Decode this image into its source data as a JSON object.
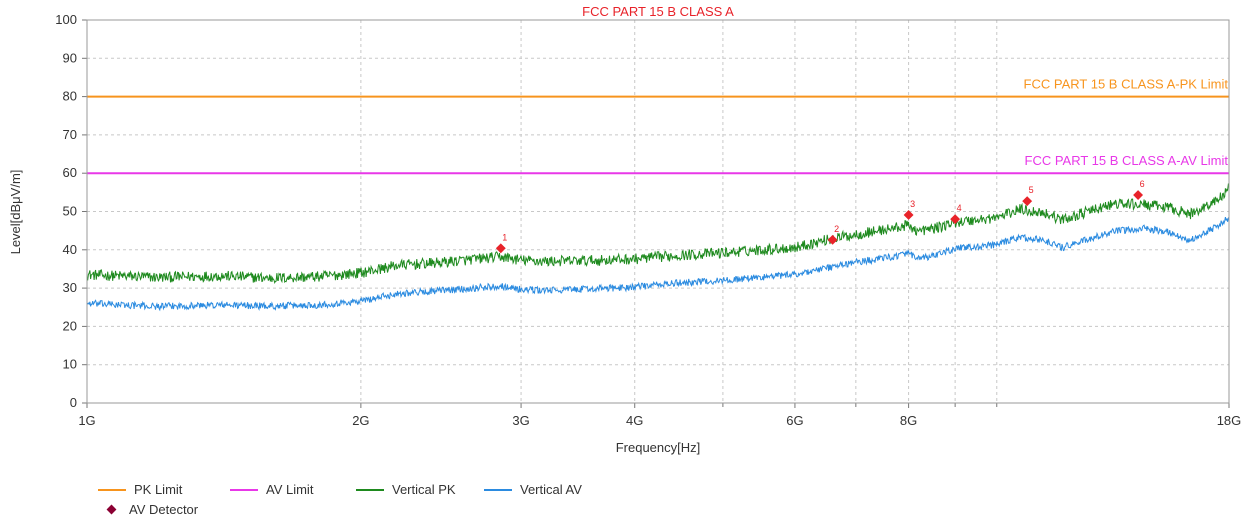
{
  "chart_data": {
    "type": "line",
    "title": "FCC PART 15 B CLASS A",
    "xlabel": "Frequency[Hz]",
    "ylabel": "Level[dBμV/m]",
    "x_scale": "log",
    "xlim_ghz": [
      1,
      18
    ],
    "ylim": [
      0,
      100
    ],
    "y_ticks": [
      0,
      10,
      20,
      30,
      40,
      50,
      60,
      70,
      80,
      90,
      100
    ],
    "x_ticks": [
      {
        "ghz": 1,
        "label": "1G"
      },
      {
        "ghz": 2,
        "label": "2G"
      },
      {
        "ghz": 3,
        "label": "3G"
      },
      {
        "ghz": 4,
        "label": "4G"
      },
      {
        "ghz": 6,
        "label": "6G"
      },
      {
        "ghz": 8,
        "label": "8G"
      },
      {
        "ghz": 18,
        "label": "18G"
      }
    ],
    "x_minor_grid_ghz": [
      5,
      7,
      9,
      10
    ],
    "grid": true,
    "limits": [
      {
        "name": "PK Limit",
        "value": 80,
        "color": "#f7941d",
        "label": "FCC PART 15 B CLASS A-PK Limit"
      },
      {
        "name": "AV Limit",
        "value": 60,
        "color": "#e838e8",
        "label": "FCC PART 15 B CLASS A-AV Limit"
      }
    ],
    "series": [
      {
        "name": "Vertical PK",
        "color": "#1e8a1e",
        "points": [
          [
            1.0,
            33.5
          ],
          [
            1.2,
            32.8
          ],
          [
            1.4,
            33.2
          ],
          [
            1.6,
            32.6
          ],
          [
            1.8,
            33.0
          ],
          [
            2.0,
            34.0
          ],
          [
            2.2,
            36.0
          ],
          [
            2.4,
            36.5
          ],
          [
            2.6,
            37.3
          ],
          [
            2.85,
            38.2
          ],
          [
            3.0,
            37.3
          ],
          [
            3.2,
            37.0
          ],
          [
            3.6,
            37.2
          ],
          [
            4.0,
            37.6
          ],
          [
            4.5,
            38.6
          ],
          [
            5.0,
            39.2
          ],
          [
            5.5,
            40.0
          ],
          [
            6.0,
            40.6
          ],
          [
            6.5,
            42.6
          ],
          [
            7.0,
            44.0
          ],
          [
            7.5,
            45.2
          ],
          [
            8.0,
            46.4
          ],
          [
            8.2,
            44.8
          ],
          [
            8.6,
            45.8
          ],
          [
            9.0,
            47.2
          ],
          [
            9.5,
            47.8
          ],
          [
            10.0,
            48.4
          ],
          [
            10.6,
            50.6
          ],
          [
            11.3,
            49.6
          ],
          [
            11.8,
            47.8
          ],
          [
            12.6,
            50.0
          ],
          [
            13.5,
            52.0
          ],
          [
            14.5,
            51.8
          ],
          [
            15.5,
            51.0
          ],
          [
            16.3,
            49.2
          ],
          [
            17.0,
            51.5
          ],
          [
            17.6,
            53.5
          ],
          [
            18.0,
            56.0
          ]
        ]
      },
      {
        "name": "Vertical AV",
        "color": "#2b8be0",
        "points": [
          [
            1.0,
            26.0
          ],
          [
            1.2,
            25.2
          ],
          [
            1.4,
            25.6
          ],
          [
            1.6,
            25.3
          ],
          [
            1.8,
            25.6
          ],
          [
            2.0,
            26.6
          ],
          [
            2.2,
            28.6
          ],
          [
            2.4,
            29.2
          ],
          [
            2.6,
            29.8
          ],
          [
            2.85,
            30.6
          ],
          [
            3.0,
            29.6
          ],
          [
            3.2,
            29.4
          ],
          [
            3.6,
            29.8
          ],
          [
            4.0,
            30.3
          ],
          [
            4.5,
            31.4
          ],
          [
            5.0,
            32.0
          ],
          [
            5.5,
            32.8
          ],
          [
            6.0,
            33.6
          ],
          [
            6.5,
            35.2
          ],
          [
            7.0,
            36.8
          ],
          [
            7.5,
            37.8
          ],
          [
            8.0,
            39.0
          ],
          [
            8.2,
            37.6
          ],
          [
            8.6,
            38.6
          ],
          [
            9.0,
            40.4
          ],
          [
            9.5,
            40.8
          ],
          [
            10.0,
            41.3
          ],
          [
            10.6,
            43.3
          ],
          [
            11.3,
            42.4
          ],
          [
            11.8,
            40.6
          ],
          [
            12.6,
            42.7
          ],
          [
            13.5,
            44.8
          ],
          [
            14.5,
            45.6
          ],
          [
            15.5,
            44.6
          ],
          [
            16.3,
            42.4
          ],
          [
            17.0,
            44.6
          ],
          [
            17.6,
            46.6
          ],
          [
            18.0,
            48.4
          ]
        ]
      }
    ],
    "markers": {
      "name": "AV Detector",
      "color": "#e8232a",
      "points": [
        {
          "n": "1",
          "ghz": 2.85,
          "value": 40.4
        },
        {
          "n": "2",
          "ghz": 6.6,
          "value": 42.6
        },
        {
          "n": "3",
          "ghz": 8.0,
          "value": 49.1
        },
        {
          "n": "4",
          "ghz": 9.0,
          "value": 48.0
        },
        {
          "n": "5",
          "ghz": 10.8,
          "value": 52.7
        },
        {
          "n": "6",
          "ghz": 14.3,
          "value": 54.3
        }
      ]
    },
    "legend": {
      "placement": "bottom-left",
      "items": [
        {
          "label": "PK Limit",
          "color": "#f7941d",
          "kind": "line"
        },
        {
          "label": "AV Limit",
          "color": "#e838e8",
          "kind": "line"
        },
        {
          "label": "Vertical PK",
          "color": "#1e8a1e",
          "kind": "line"
        },
        {
          "label": "Vertical AV",
          "color": "#2b8be0",
          "kind": "line"
        },
        {
          "label": "AV Detector",
          "color": "#8b0033",
          "kind": "diamond"
        }
      ]
    }
  }
}
